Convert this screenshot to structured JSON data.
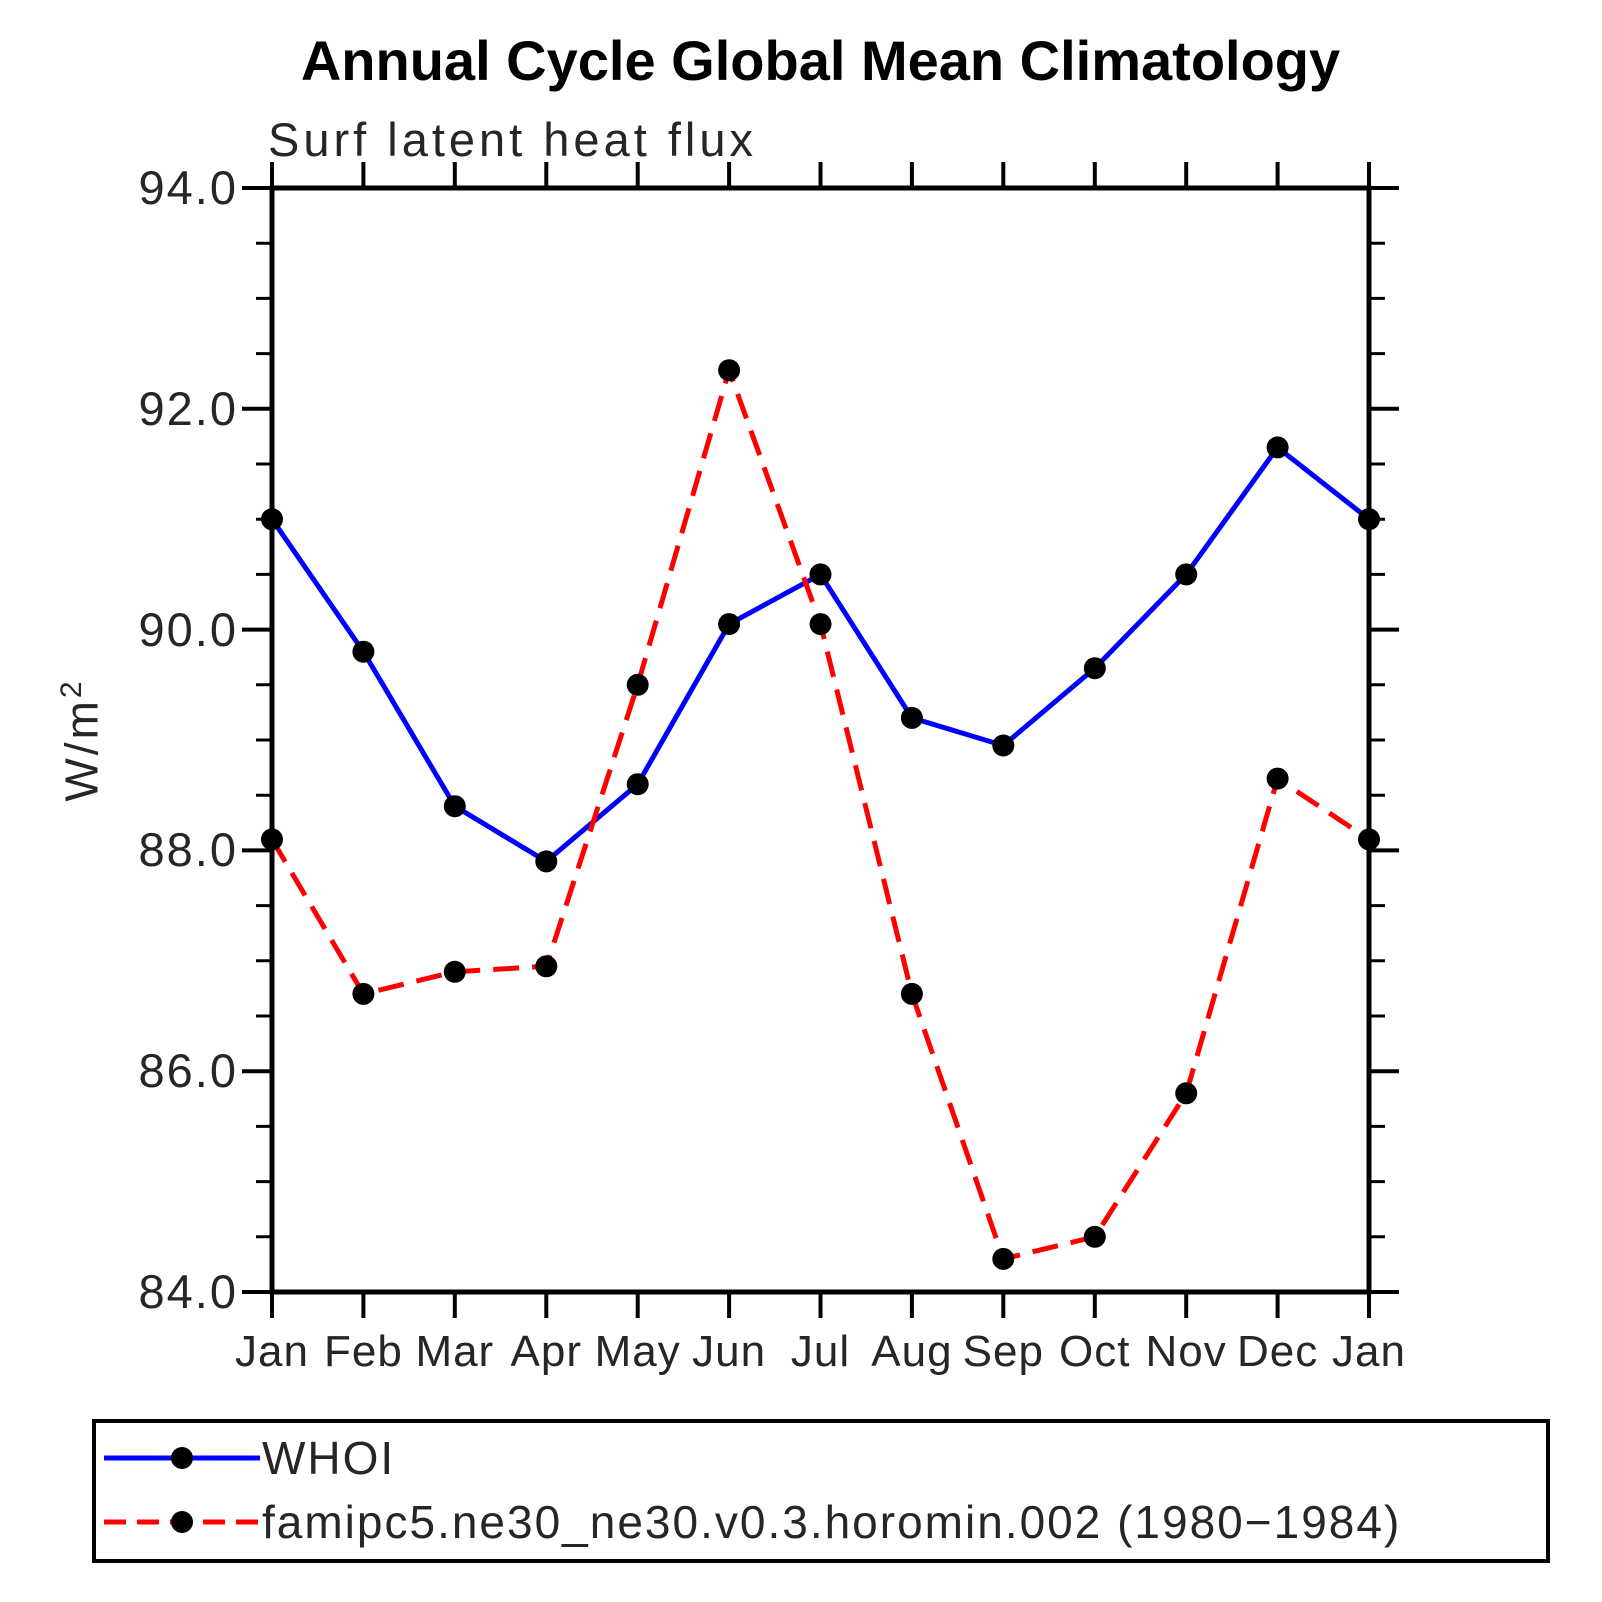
{
  "page": {
    "background": "#ffffff"
  },
  "chart_data": {
    "type": "line",
    "title": "Annual Cycle Global Mean Climatology",
    "subtitle": "Surf latent heat flux",
    "ylabel_base": "W/m",
    "ylabel_exponent": "2",
    "categories": [
      "Jan",
      "Feb",
      "Mar",
      "Apr",
      "May",
      "Jun",
      "Jul",
      "Aug",
      "Sep",
      "Oct",
      "Nov",
      "Dec",
      "Jan"
    ],
    "ylim": [
      84.0,
      94.0
    ],
    "ytick_step": 2.0,
    "yminor_step": 0.5,
    "ytick_labels": [
      "94.0",
      "92.0",
      "90.0",
      "88.0",
      "86.0",
      "84.0"
    ],
    "ytick_values": [
      94.0,
      92.0,
      90.0,
      88.0,
      86.0,
      84.0
    ],
    "grid": false,
    "axis_color": "#000000",
    "legend_position": "bottom",
    "series": [
      {
        "name": "WHOI",
        "color": "#0000ff",
        "line_style": "solid",
        "marker": "circle",
        "marker_color": "#000000",
        "values": [
          91.0,
          89.8,
          88.4,
          87.9,
          88.6,
          90.05,
          90.5,
          89.2,
          88.95,
          89.65,
          90.5,
          91.65,
          91.0
        ]
      },
      {
        "name": "famipc5.ne30_ne30.v0.3.horomin.002 (1980−1984)",
        "color": "#ff0000",
        "line_style": "dashed",
        "marker": "circle",
        "marker_color": "#000000",
        "values": [
          88.1,
          86.7,
          86.9,
          86.95,
          89.5,
          92.35,
          90.05,
          86.7,
          84.3,
          84.5,
          85.8,
          88.65,
          88.1
        ]
      }
    ]
  }
}
